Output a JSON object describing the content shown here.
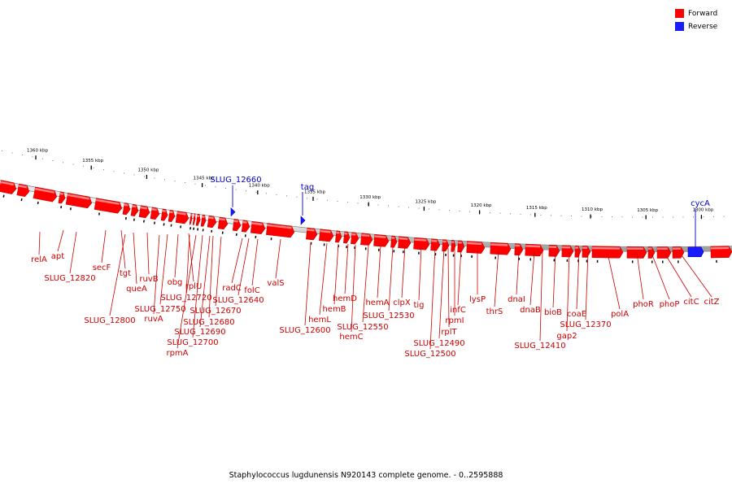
{
  "colors": {
    "forward": "#ff0000",
    "reverse": "#1a1aff",
    "forward_dark": "#b30000",
    "reverse_dark": "#0000b0",
    "backbone": "#8a8a8a",
    "label_forward": "#cc0000",
    "label_reverse": "#0000cc"
  },
  "legend": [
    {
      "label": "Forward",
      "strand": "forward"
    },
    {
      "label": "Reverse",
      "strand": "reverse"
    }
  ],
  "caption": "Staphylococcus lugdunensis N920143 complete genome. - 0..2595888",
  "ruler_ticks": [
    "1360 kbp",
    "1355 kbp",
    "1350 kbp",
    "1345 kbp",
    "1340 kbp",
    "1335 kbp",
    "1330 kbp",
    "1325 kbp",
    "1320 kbp",
    "1315 kbp",
    "1310 kbp",
    "1305 kbp",
    "1300 kbp"
  ],
  "reverse_features": [
    {
      "label": "SLUG_12660",
      "shape": "small"
    },
    {
      "label": "tag",
      "shape": "small"
    },
    {
      "label": "cycA",
      "shape": "box"
    }
  ],
  "forward_labels": [
    "relA",
    "apt",
    "SLUG_12820",
    "secF",
    "tgt",
    "queA",
    "ruvB",
    "SLUG_12800",
    "SLUG_12750",
    "ruvA",
    "obg",
    "rplU",
    "SLUG_12720",
    "SLUG_12700",
    "SLUG_12690",
    "rpmA",
    "SLUG_12680",
    "SLUG_12670",
    "radC",
    "SLUG_12640",
    "folC",
    "valS",
    "SLUG_12600",
    "hemL",
    "hemB",
    "hemD",
    "hemC",
    "SLUG_12550",
    "hemA",
    "SLUG_12530",
    "clpX",
    "tig",
    "SLUG_12500",
    "SLUG_12490",
    "rplT",
    "rpmI",
    "infC",
    "lysP",
    "thrS",
    "dnaI",
    "dnaB",
    "SLUG_12410",
    "bioB",
    "gap2",
    "coaE",
    "SLUG_12370",
    "polA",
    "phoR",
    "phoP",
    "citC",
    "citZ"
  ]
}
